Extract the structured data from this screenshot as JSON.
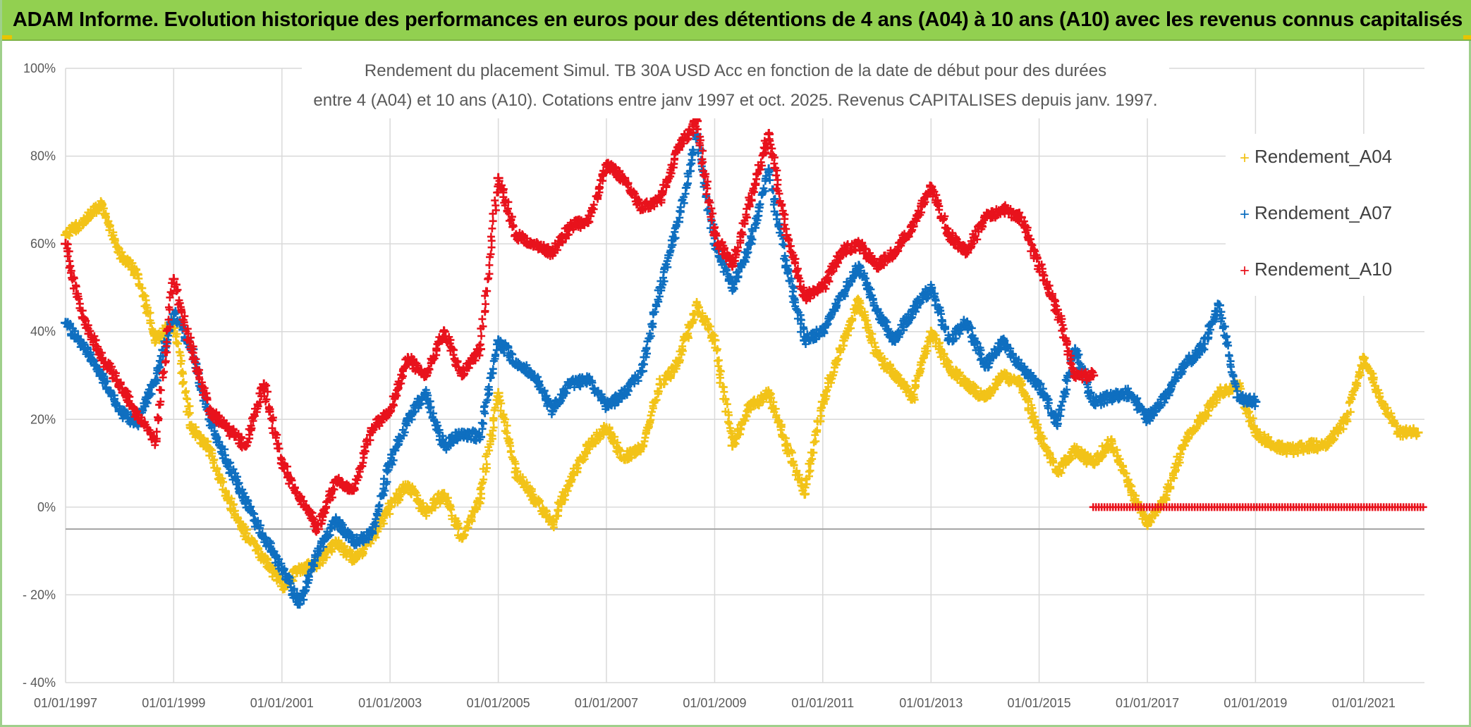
{
  "banner": {
    "title": "ADAM Informe. Evolution historique des performances en euros pour des détentions de 4 ans (A04) à 10 ans (A10) avec les revenus connus capitalisés"
  },
  "colors": {
    "A04": "#f2c318",
    "A07": "#0f6fc0",
    "A10": "#e8121c",
    "banner": "#92d050",
    "grid": "#d9d9d9",
    "zero_line": "#a6a6a6"
  },
  "chart_data": {
    "type": "scatter",
    "title_lines": [
      "Rendement du placement Simul. TB 30A USD Acc en fonction de la date de début pour des durées",
      "entre 4 (A04) et 10 ans (A10). Cotations entre janv 1997 et oct. 2025. Revenus CAPITALISES depuis janv. 1997."
    ],
    "x_range": [
      "1997-01-01",
      "2022-02-15"
    ],
    "x_tick_labels": [
      "01/01/1997",
      "01/01/1999",
      "01/01/2001",
      "01/01/2003",
      "01/01/2005",
      "01/01/2007",
      "01/01/2009",
      "01/01/2011",
      "01/01/2013",
      "01/01/2015",
      "01/01/2017",
      "01/01/2019",
      "01/01/2021"
    ],
    "y_range": [
      -40,
      100
    ],
    "y_ticks": [
      100,
      80,
      60,
      40,
      20,
      0,
      -20,
      -40
    ],
    "y_tick_labels": [
      "100%",
      "80%",
      "60%",
      "40%",
      "20%",
      "0%",
      "- 20%",
      "- 40%"
    ],
    "reference_line_y": -5,
    "grid": true,
    "legend_position": "right",
    "marker": "+",
    "series": [
      {
        "name": "Rendement_A04",
        "color": "#f2c318",
        "points": [
          [
            "1997-01-01",
            62
          ],
          [
            "1997-05-01",
            65
          ],
          [
            "1997-09-01",
            69
          ],
          [
            "1998-01-01",
            58
          ],
          [
            "1998-05-01",
            53
          ],
          [
            "1998-09-01",
            38
          ],
          [
            "1999-01-01",
            42
          ],
          [
            "1999-05-01",
            18
          ],
          [
            "1999-09-01",
            13
          ],
          [
            "2000-01-01",
            2
          ],
          [
            "2000-05-01",
            -6
          ],
          [
            "2000-09-01",
            -12
          ],
          [
            "2001-01-01",
            -18
          ],
          [
            "2001-05-01",
            -14
          ],
          [
            "2001-09-01",
            -13
          ],
          [
            "2002-01-01",
            -8
          ],
          [
            "2002-05-01",
            -12
          ],
          [
            "2002-09-01",
            -7
          ],
          [
            "2003-01-01",
            0
          ],
          [
            "2003-05-01",
            5
          ],
          [
            "2003-09-01",
            -1
          ],
          [
            "2004-01-01",
            3
          ],
          [
            "2004-05-01",
            -7
          ],
          [
            "2004-09-01",
            2
          ],
          [
            "2005-01-01",
            26
          ],
          [
            "2005-05-01",
            8
          ],
          [
            "2005-09-01",
            2
          ],
          [
            "2006-01-01",
            -4
          ],
          [
            "2006-05-01",
            6
          ],
          [
            "2006-09-01",
            14
          ],
          [
            "2007-01-01",
            18
          ],
          [
            "2007-05-01",
            11
          ],
          [
            "2007-09-01",
            14
          ],
          [
            "2008-01-01",
            28
          ],
          [
            "2008-05-01",
            33
          ],
          [
            "2008-09-01",
            46
          ],
          [
            "2009-01-01",
            38
          ],
          [
            "2009-05-01",
            14
          ],
          [
            "2009-09-01",
            23
          ],
          [
            "2010-01-01",
            26
          ],
          [
            "2010-05-01",
            14
          ],
          [
            "2010-09-01",
            3
          ],
          [
            "2011-01-01",
            24
          ],
          [
            "2011-05-01",
            36
          ],
          [
            "2011-09-01",
            47
          ],
          [
            "2012-01-01",
            35
          ],
          [
            "2012-05-01",
            30
          ],
          [
            "2012-09-01",
            25
          ],
          [
            "2013-01-01",
            40
          ],
          [
            "2013-05-01",
            32
          ],
          [
            "2013-09-01",
            28
          ],
          [
            "2014-01-01",
            25
          ],
          [
            "2014-05-01",
            30
          ],
          [
            "2014-09-01",
            28
          ],
          [
            "2015-01-01",
            17
          ],
          [
            "2015-05-01",
            8
          ],
          [
            "2015-09-01",
            13
          ],
          [
            "2016-01-01",
            10
          ],
          [
            "2016-05-01",
            15
          ],
          [
            "2016-09-01",
            5
          ],
          [
            "2017-01-01",
            -4
          ],
          [
            "2017-05-01",
            2
          ],
          [
            "2017-09-01",
            14
          ],
          [
            "2018-01-01",
            20
          ],
          [
            "2018-05-01",
            26
          ],
          [
            "2018-09-01",
            28
          ],
          [
            "2019-01-01",
            17
          ],
          [
            "2019-05-01",
            14
          ],
          [
            "2019-09-01",
            13
          ],
          [
            "2020-01-01",
            14
          ],
          [
            "2020-05-01",
            14
          ],
          [
            "2020-09-01",
            20
          ],
          [
            "2021-01-01",
            34
          ],
          [
            "2021-05-01",
            24
          ],
          [
            "2021-09-01",
            17
          ],
          [
            "2022-01-01",
            17
          ]
        ]
      },
      {
        "name": "Rendement_A07",
        "color": "#0f6fc0",
        "points": [
          [
            "1997-01-01",
            42
          ],
          [
            "1997-05-01",
            37
          ],
          [
            "1997-09-01",
            30
          ],
          [
            "1998-01-01",
            22
          ],
          [
            "1998-05-01",
            19
          ],
          [
            "1998-09-01",
            29
          ],
          [
            "1999-01-01",
            44
          ],
          [
            "1999-05-01",
            36
          ],
          [
            "1999-09-01",
            20
          ],
          [
            "2000-01-01",
            10
          ],
          [
            "2000-05-01",
            1
          ],
          [
            "2000-09-01",
            -7
          ],
          [
            "2001-01-01",
            -14
          ],
          [
            "2001-05-01",
            -22
          ],
          [
            "2001-09-01",
            -10
          ],
          [
            "2002-01-01",
            -3
          ],
          [
            "2002-05-01",
            -8
          ],
          [
            "2002-09-01",
            -6
          ],
          [
            "2003-01-01",
            10
          ],
          [
            "2003-05-01",
            20
          ],
          [
            "2003-09-01",
            26
          ],
          [
            "2004-01-01",
            14
          ],
          [
            "2004-05-01",
            17
          ],
          [
            "2004-09-01",
            16
          ],
          [
            "2005-01-01",
            38
          ],
          [
            "2005-05-01",
            33
          ],
          [
            "2005-09-01",
            30
          ],
          [
            "2006-01-01",
            22
          ],
          [
            "2006-05-01",
            28
          ],
          [
            "2006-09-01",
            29
          ],
          [
            "2007-01-01",
            23
          ],
          [
            "2007-05-01",
            26
          ],
          [
            "2007-09-01",
            31
          ],
          [
            "2008-01-01",
            50
          ],
          [
            "2008-05-01",
            65
          ],
          [
            "2008-09-01",
            85
          ],
          [
            "2009-01-01",
            60
          ],
          [
            "2009-05-01",
            50
          ],
          [
            "2009-09-01",
            60
          ],
          [
            "2010-01-01",
            77
          ],
          [
            "2010-05-01",
            55
          ],
          [
            "2010-09-01",
            38
          ],
          [
            "2011-01-01",
            40
          ],
          [
            "2011-05-01",
            48
          ],
          [
            "2011-09-01",
            55
          ],
          [
            "2012-01-01",
            45
          ],
          [
            "2012-05-01",
            38
          ],
          [
            "2012-09-01",
            45
          ],
          [
            "2013-01-01",
            50
          ],
          [
            "2013-05-01",
            38
          ],
          [
            "2013-09-01",
            42
          ],
          [
            "2014-01-01",
            32
          ],
          [
            "2014-05-01",
            38
          ],
          [
            "2014-09-01",
            32
          ],
          [
            "2015-01-01",
            28
          ],
          [
            "2015-05-01",
            19
          ],
          [
            "2015-09-01",
            36
          ],
          [
            "2016-01-01",
            24
          ],
          [
            "2016-05-01",
            25
          ],
          [
            "2016-09-01",
            26
          ],
          [
            "2017-01-01",
            20
          ],
          [
            "2017-05-01",
            25
          ],
          [
            "2017-09-01",
            32
          ],
          [
            "2018-01-01",
            36
          ],
          [
            "2018-05-01",
            46
          ],
          [
            "2018-09-01",
            25
          ],
          [
            "2019-01-01",
            24
          ]
        ]
      },
      {
        "name": "Rendement_A10",
        "color": "#e8121c",
        "points": [
          [
            "1997-01-01",
            60
          ],
          [
            "1997-05-01",
            43
          ],
          [
            "1997-09-01",
            34
          ],
          [
            "1998-01-01",
            28
          ],
          [
            "1998-05-01",
            21
          ],
          [
            "1998-09-01",
            15
          ],
          [
            "1999-01-01",
            52
          ],
          [
            "1999-05-01",
            36
          ],
          [
            "1999-09-01",
            22
          ],
          [
            "2000-01-01",
            18
          ],
          [
            "2000-05-01",
            14
          ],
          [
            "2000-09-01",
            28
          ],
          [
            "2001-01-01",
            10
          ],
          [
            "2001-05-01",
            2
          ],
          [
            "2001-09-01",
            -5
          ],
          [
            "2002-01-01",
            6
          ],
          [
            "2002-05-01",
            4
          ],
          [
            "2002-09-01",
            18
          ],
          [
            "2003-01-01",
            22
          ],
          [
            "2003-05-01",
            34
          ],
          [
            "2003-09-01",
            30
          ],
          [
            "2004-01-01",
            40
          ],
          [
            "2004-05-01",
            30
          ],
          [
            "2004-09-01",
            36
          ],
          [
            "2005-01-01",
            75
          ],
          [
            "2005-05-01",
            62
          ],
          [
            "2005-09-01",
            60
          ],
          [
            "2006-01-01",
            58
          ],
          [
            "2006-05-01",
            64
          ],
          [
            "2006-09-01",
            65
          ],
          [
            "2007-01-01",
            78
          ],
          [
            "2007-05-01",
            75
          ],
          [
            "2007-09-01",
            68
          ],
          [
            "2008-01-01",
            70
          ],
          [
            "2008-05-01",
            82
          ],
          [
            "2008-09-01",
            88
          ],
          [
            "2009-01-01",
            62
          ],
          [
            "2009-05-01",
            55
          ],
          [
            "2009-09-01",
            70
          ],
          [
            "2010-01-01",
            85
          ],
          [
            "2010-05-01",
            62
          ],
          [
            "2010-09-01",
            48
          ],
          [
            "2011-01-01",
            50
          ],
          [
            "2011-05-01",
            58
          ],
          [
            "2011-09-01",
            60
          ],
          [
            "2012-01-01",
            55
          ],
          [
            "2012-05-01",
            58
          ],
          [
            "2012-09-01",
            64
          ],
          [
            "2013-01-01",
            73
          ],
          [
            "2013-05-01",
            62
          ],
          [
            "2013-09-01",
            58
          ],
          [
            "2014-01-01",
            66
          ],
          [
            "2014-05-01",
            68
          ],
          [
            "2014-09-01",
            66
          ],
          [
            "2015-01-01",
            55
          ],
          [
            "2015-05-01",
            45
          ],
          [
            "2015-09-01",
            30
          ],
          [
            "2016-01-01",
            30
          ]
        ],
        "flat_segment": {
          "from": "2016-01-01",
          "to": "2022-02-15",
          "value": 0
        }
      }
    ]
  }
}
